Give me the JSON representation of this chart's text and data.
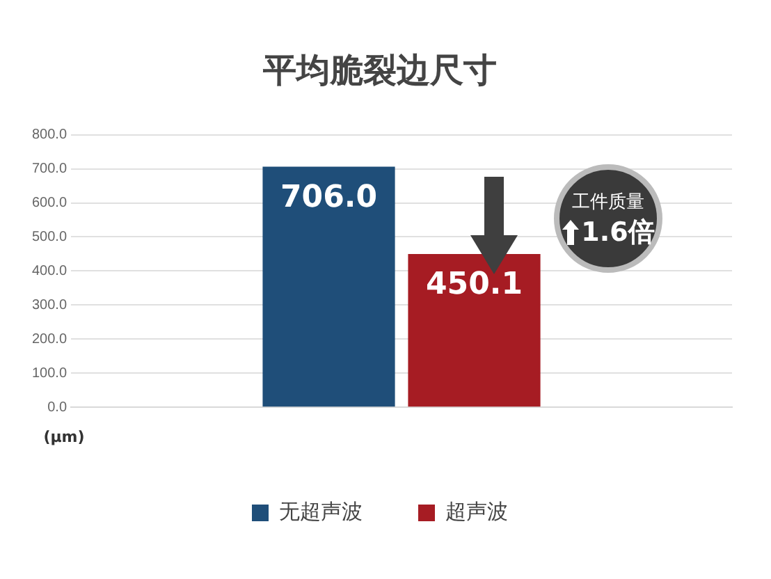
{
  "chart_data": {
    "type": "bar",
    "title": "平均脆裂边尺寸",
    "ylabel": "(μm)",
    "categories": [
      null
    ],
    "series": [
      {
        "name": "无超声波",
        "color": "#1f4e79",
        "values": [
          706.0
        ],
        "value_labels": [
          "706.0"
        ]
      },
      {
        "name": "超声波",
        "color": "#a61c23",
        "values": [
          450.1
        ],
        "value_labels": [
          "450.1"
        ]
      }
    ],
    "ylim": [
      0,
      800
    ],
    "yticks": [
      {
        "value": 0,
        "label": "0.0"
      },
      {
        "value": 100,
        "label": "100.0"
      },
      {
        "value": 200,
        "label": "200.0"
      },
      {
        "value": 300,
        "label": "300.0"
      },
      {
        "value": 400,
        "label": "400.0"
      },
      {
        "value": 500,
        "label": "500.0"
      },
      {
        "value": 600,
        "label": "600.0"
      },
      {
        "value": 700,
        "label": "700.0"
      },
      {
        "value": 800,
        "label": "800.0"
      }
    ],
    "grid": "y",
    "legend": "bottom",
    "annotations": [
      "工件质量",
      "1.6倍"
    ]
  }
}
